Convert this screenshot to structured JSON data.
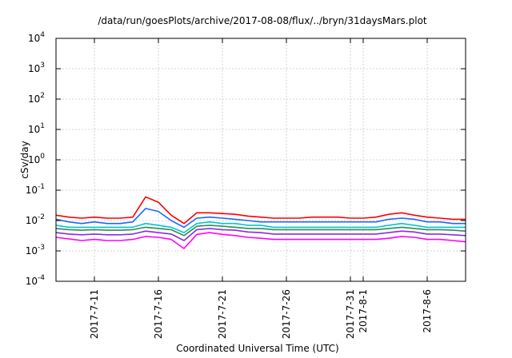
{
  "chart_data": {
    "type": "line",
    "title": "/data/run/goesPlots/archive/2017-08-08/flux/../bryn/31daysMars.plot",
    "xlabel": "Coordinated Universal Time (UTC)",
    "ylabel": "cSv/day",
    "yscale": "log",
    "ylim": [
      0.0001,
      10000
    ],
    "y_ticks": [
      {
        "base": "10",
        "exp": "-4",
        "value": 0.0001
      },
      {
        "base": "10",
        "exp": "-3",
        "value": 0.001
      },
      {
        "base": "10",
        "exp": "-2",
        "value": 0.01
      },
      {
        "base": "10",
        "exp": "-1",
        "value": 0.1
      },
      {
        "base": "10",
        "exp": "0",
        "value": 1
      },
      {
        "base": "10",
        "exp": "1",
        "value": 10
      },
      {
        "base": "10",
        "exp": "2",
        "value": 100
      },
      {
        "base": "10",
        "exp": "3",
        "value": 1000
      },
      {
        "base": "10",
        "exp": "4",
        "value": 10000
      }
    ],
    "xlim": [
      "2017-07-08",
      "2017-08-09"
    ],
    "x_ticks": [
      {
        "label": "2017-7-11",
        "date": "2017-07-11"
      },
      {
        "label": "2017-7-16",
        "date": "2017-07-16"
      },
      {
        "label": "2017-7-21",
        "date": "2017-07-21"
      },
      {
        "label": "2017-7-26",
        "date": "2017-07-26"
      },
      {
        "label": "2017-7-31",
        "date": "2017-07-31"
      },
      {
        "label": "2017-8-1",
        "date": "2017-08-01"
      },
      {
        "label": "2017-8-6",
        "date": "2017-08-06"
      }
    ],
    "grid": true,
    "x": [
      "2017-07-08",
      "2017-07-09",
      "2017-07-10",
      "2017-07-11",
      "2017-07-12",
      "2017-07-13",
      "2017-07-14",
      "2017-07-15",
      "2017-07-16",
      "2017-07-17",
      "2017-07-18",
      "2017-07-19",
      "2017-07-20",
      "2017-07-21",
      "2017-07-22",
      "2017-07-23",
      "2017-07-24",
      "2017-07-25",
      "2017-07-26",
      "2017-07-27",
      "2017-07-28",
      "2017-07-29",
      "2017-07-30",
      "2017-07-31",
      "2017-08-01",
      "2017-08-02",
      "2017-08-03",
      "2017-08-04",
      "2017-08-05",
      "2017-08-06",
      "2017-08-07",
      "2017-08-08",
      "2017-08-09"
    ],
    "series": [
      {
        "color": "#ff0000",
        "values": [
          0.015,
          0.013,
          0.012,
          0.013,
          0.012,
          0.012,
          0.013,
          0.06,
          0.04,
          0.015,
          0.008,
          0.018,
          0.018,
          0.017,
          0.016,
          0.014,
          0.013,
          0.012,
          0.012,
          0.012,
          0.013,
          0.013,
          0.013,
          0.012,
          0.012,
          0.013,
          0.016,
          0.018,
          0.015,
          0.013,
          0.012,
          0.011,
          0.011
        ]
      },
      {
        "color": "#1e64ff",
        "values": [
          0.011,
          0.009,
          0.008,
          0.009,
          0.008,
          0.008,
          0.009,
          0.025,
          0.02,
          0.01,
          0.006,
          0.012,
          0.013,
          0.012,
          0.011,
          0.01,
          0.009,
          0.009,
          0.009,
          0.009,
          0.009,
          0.009,
          0.009,
          0.009,
          0.009,
          0.009,
          0.011,
          0.012,
          0.011,
          0.009,
          0.009,
          0.008,
          0.008
        ]
      },
      {
        "color": "#00c8c8",
        "values": [
          0.007,
          0.006,
          0.006,
          0.006,
          0.006,
          0.006,
          0.006,
          0.008,
          0.007,
          0.006,
          0.004,
          0.008,
          0.009,
          0.008,
          0.008,
          0.007,
          0.007,
          0.006,
          0.006,
          0.006,
          0.006,
          0.006,
          0.006,
          0.006,
          0.006,
          0.006,
          0.007,
          0.008,
          0.007,
          0.006,
          0.006,
          0.006,
          0.006
        ]
      },
      {
        "color": "#2e8b57",
        "values": [
          0.0055,
          0.005,
          0.0048,
          0.005,
          0.0048,
          0.0048,
          0.005,
          0.006,
          0.0055,
          0.005,
          0.0032,
          0.0065,
          0.007,
          0.0065,
          0.006,
          0.0055,
          0.0055,
          0.005,
          0.005,
          0.005,
          0.005,
          0.005,
          0.005,
          0.005,
          0.005,
          0.005,
          0.0055,
          0.006,
          0.0055,
          0.005,
          0.005,
          0.0048,
          0.0045
        ]
      },
      {
        "color": "#8a2be2",
        "values": [
          0.004,
          0.0036,
          0.0034,
          0.0036,
          0.0034,
          0.0034,
          0.0036,
          0.0045,
          0.004,
          0.0036,
          0.0022,
          0.005,
          0.0055,
          0.005,
          0.0048,
          0.0042,
          0.004,
          0.0036,
          0.0036,
          0.0036,
          0.0036,
          0.0036,
          0.0036,
          0.0036,
          0.0036,
          0.0036,
          0.004,
          0.0045,
          0.0042,
          0.0036,
          0.0036,
          0.0034,
          0.0032
        ]
      },
      {
        "color": "#ff00ff",
        "values": [
          0.0028,
          0.0025,
          0.0022,
          0.0024,
          0.0022,
          0.0022,
          0.0024,
          0.003,
          0.0028,
          0.0024,
          0.0012,
          0.0035,
          0.004,
          0.0035,
          0.0032,
          0.0028,
          0.0026,
          0.0024,
          0.0024,
          0.0024,
          0.0024,
          0.0024,
          0.0024,
          0.0024,
          0.0024,
          0.0024,
          0.0026,
          0.003,
          0.0028,
          0.0024,
          0.0024,
          0.0022,
          0.002
        ]
      }
    ]
  }
}
